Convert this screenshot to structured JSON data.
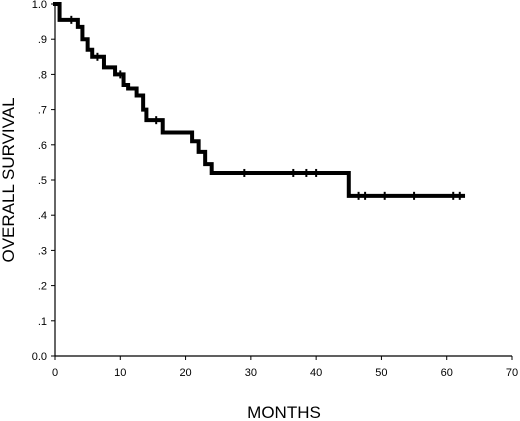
{
  "chart_data": {
    "type": "line",
    "title": "",
    "xlabel": "MONTHS",
    "ylabel": "OVERALL SURVIVAL",
    "xlim": [
      0,
      70
    ],
    "ylim": [
      0,
      1.0
    ],
    "x_ticks": [
      0,
      10,
      20,
      30,
      40,
      50,
      60,
      70
    ],
    "x_tick_labels": [
      "0",
      "10",
      "20",
      "30",
      "40",
      "50",
      "60",
      "70"
    ],
    "y_ticks": [
      0,
      0.1,
      0.2,
      0.3,
      0.4,
      0.5,
      0.6,
      0.7,
      0.8,
      0.9,
      1.0
    ],
    "y_tick_labels": [
      "0.0",
      ".1",
      ".2",
      ".3",
      ".4",
      ".5",
      ".6",
      ".7",
      ".8",
      ".9",
      "1.0"
    ],
    "grid": false,
    "legend": "none",
    "series": [
      {
        "style": "step",
        "color": "#000000",
        "x": [
          0,
          0.7,
          3.5,
          4.2,
          5.0,
          5.7,
          7.5,
          9.2,
          10.5,
          11.2,
          12.5,
          13.5,
          14.0,
          16.5,
          21.0,
          22.0,
          23.0,
          24.0,
          45.0,
          62.5
        ],
        "y": [
          1.0,
          0.955,
          0.935,
          0.9,
          0.87,
          0.85,
          0.82,
          0.8,
          0.77,
          0.76,
          0.74,
          0.7,
          0.67,
          0.635,
          0.61,
          0.58,
          0.545,
          0.52,
          0.455,
          0.455
        ],
        "censored": [
          {
            "x": 2.5,
            "y": 0.955
          },
          {
            "x": 6.5,
            "y": 0.85
          },
          {
            "x": 10.0,
            "y": 0.8
          },
          {
            "x": 15.5,
            "y": 0.67
          },
          {
            "x": 29.0,
            "y": 0.52
          },
          {
            "x": 36.5,
            "y": 0.52
          },
          {
            "x": 38.5,
            "y": 0.52
          },
          {
            "x": 40.0,
            "y": 0.52
          },
          {
            "x": 46.5,
            "y": 0.455
          },
          {
            "x": 47.5,
            "y": 0.455
          },
          {
            "x": 50.5,
            "y": 0.455
          },
          {
            "x": 55.0,
            "y": 0.455
          },
          {
            "x": 61.0,
            "y": 0.455
          },
          {
            "x": 62.0,
            "y": 0.455
          }
        ]
      }
    ]
  }
}
